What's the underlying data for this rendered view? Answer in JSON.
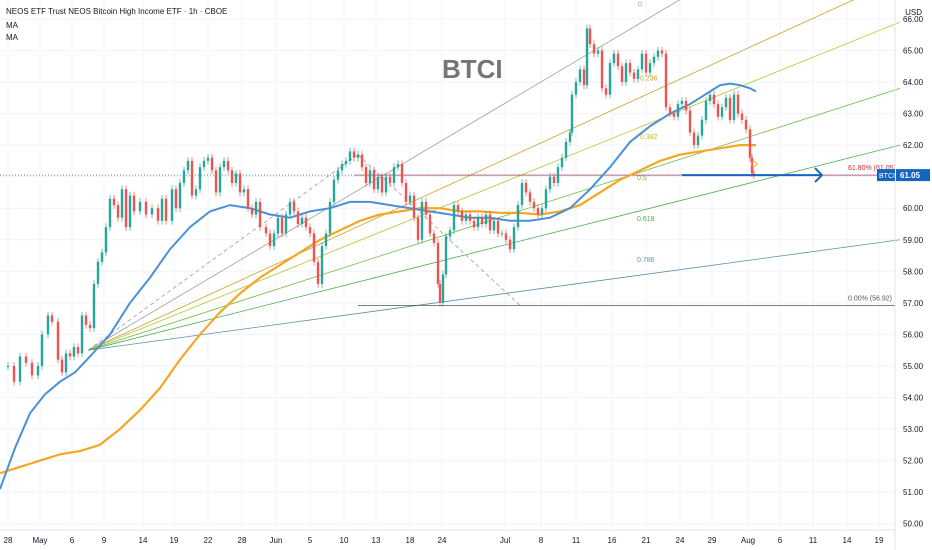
{
  "header": {
    "title": "NEOS ETF Trust NEOS Bitcoin High Income ETF · 1h · CBOE",
    "indicators": [
      "MA",
      "MA"
    ]
  },
  "axis_unit": "USD",
  "colors": {
    "up": "#26a69a",
    "down": "#ef5350",
    "ma_fast": "#4a90d9",
    "ma_slow": "#f5a623",
    "annotation": "#1565c0",
    "fib_level": "#d32f2f"
  },
  "chart_data": {
    "type": "line",
    "ticker_label": "BTCI",
    "last_price": "61.05",
    "ylim": [
      49.8,
      66.6
    ],
    "y_ticks": [
      "50.00",
      "51.00",
      "52.00",
      "53.00",
      "54.00",
      "55.00",
      "56.00",
      "57.00",
      "58.00",
      "59.00",
      "60.00",
      "61.00",
      "62.00",
      "63.00",
      "64.00",
      "65.00",
      "66.00"
    ],
    "x_ticks": [
      "28",
      "May",
      "6",
      "9",
      "14",
      "19",
      "22",
      "28",
      "Jun",
      "5",
      "10",
      "13",
      "18",
      "24",
      "Jul",
      "8",
      "11",
      "16",
      "21",
      "24",
      "29",
      "Aug",
      "6",
      "11",
      "14",
      "19"
    ],
    "price_path": [
      [
        0,
        55.0
      ],
      [
        8,
        55.0
      ],
      [
        14,
        54.5
      ],
      [
        20,
        55.3
      ],
      [
        26,
        55.1
      ],
      [
        32,
        54.7
      ],
      [
        38,
        55.0
      ],
      [
        42,
        56.0
      ],
      [
        48,
        56.6
      ],
      [
        52,
        56.4
      ],
      [
        58,
        55.2
      ],
      [
        62,
        54.8
      ],
      [
        66,
        55.4
      ],
      [
        70,
        55.3
      ],
      [
        74,
        55.6
      ],
      [
        78,
        55.4
      ],
      [
        82,
        56.6
      ],
      [
        86,
        56.3
      ],
      [
        90,
        56.2
      ],
      [
        94,
        57.6
      ],
      [
        98,
        58.3
      ],
      [
        102,
        58.6
      ],
      [
        106,
        59.4
      ],
      [
        110,
        60.3
      ],
      [
        114,
        60.1
      ],
      [
        118,
        59.7
      ],
      [
        122,
        60.6
      ],
      [
        126,
        59.4
      ],
      [
        130,
        60.4
      ],
      [
        134,
        59.9
      ],
      [
        140,
        60.2
      ],
      [
        146,
        59.8
      ],
      [
        152,
        60.0
      ],
      [
        158,
        59.6
      ],
      [
        162,
        60.3
      ],
      [
        166,
        59.6
      ],
      [
        172,
        60.6
      ],
      [
        176,
        60.0
      ],
      [
        180,
        60.8
      ],
      [
        184,
        61.2
      ],
      [
        188,
        61.5
      ],
      [
        192,
        60.4
      ],
      [
        196,
        60.6
      ],
      [
        200,
        61.3
      ],
      [
        204,
        61.5
      ],
      [
        208,
        61.6
      ],
      [
        212,
        61.2
      ],
      [
        216,
        60.5
      ],
      [
        220,
        61.3
      ],
      [
        224,
        61.5
      ],
      [
        228,
        61.2
      ],
      [
        232,
        60.8
      ],
      [
        236,
        61.1
      ],
      [
        240,
        60.5
      ],
      [
        244,
        60.6
      ],
      [
        248,
        60.0
      ],
      [
        252,
        59.8
      ],
      [
        256,
        60.2
      ],
      [
        260,
        59.4
      ],
      [
        266,
        59.2
      ],
      [
        270,
        58.8
      ],
      [
        274,
        59.2
      ],
      [
        278,
        59.7
      ],
      [
        282,
        59.2
      ],
      [
        286,
        59.8
      ],
      [
        290,
        60.2
      ],
      [
        294,
        59.9
      ],
      [
        298,
        59.5
      ],
      [
        302,
        59.7
      ],
      [
        306,
        59.4
      ],
      [
        310,
        59.2
      ],
      [
        314,
        58.3
      ],
      [
        318,
        57.6
      ],
      [
        322,
        58.8
      ],
      [
        326,
        59.2
      ],
      [
        330,
        60.2
      ],
      [
        334,
        60.9
      ],
      [
        338,
        61.2
      ],
      [
        342,
        61.4
      ],
      [
        346,
        61.5
      ],
      [
        350,
        61.8
      ],
      [
        354,
        61.6
      ],
      [
        358,
        61.7
      ],
      [
        362,
        61.3
      ],
      [
        366,
        60.8
      ],
      [
        370,
        61.2
      ],
      [
        374,
        60.6
      ],
      [
        378,
        61.0
      ],
      [
        382,
        60.5
      ],
      [
        386,
        61.0
      ],
      [
        390,
        60.8
      ],
      [
        394,
        61.3
      ],
      [
        398,
        61.4
      ],
      [
        402,
        60.8
      ],
      [
        406,
        60.2
      ],
      [
        410,
        60.4
      ],
      [
        414,
        59.7
      ],
      [
        418,
        59.0
      ],
      [
        422,
        60.2
      ],
      [
        426,
        59.8
      ],
      [
        430,
        59.2
      ],
      [
        434,
        58.9
      ],
      [
        438,
        57.6
      ],
      [
        440,
        57.0
      ],
      [
        443,
        57.9
      ],
      [
        446,
        59.1
      ],
      [
        450,
        59.3
      ],
      [
        454,
        60.1
      ],
      [
        458,
        59.9
      ],
      [
        462,
        59.6
      ],
      [
        466,
        59.8
      ],
      [
        470,
        59.6
      ],
      [
        474,
        59.4
      ],
      [
        478,
        59.7
      ],
      [
        482,
        59.5
      ],
      [
        486,
        59.8
      ],
      [
        490,
        59.3
      ],
      [
        494,
        59.6
      ],
      [
        498,
        59.2
      ],
      [
        502,
        59.2
      ],
      [
        506,
        59.0
      ],
      [
        510,
        58.7
      ],
      [
        514,
        59.4
      ],
      [
        518,
        60.1
      ],
      [
        522,
        60.8
      ],
      [
        526,
        60.5
      ],
      [
        530,
        60.2
      ],
      [
        534,
        60.0
      ],
      [
        538,
        59.8
      ],
      [
        542,
        60.0
      ],
      [
        546,
        60.6
      ],
      [
        550,
        61.0
      ],
      [
        554,
        60.8
      ],
      [
        558,
        61.3
      ],
      [
        562,
        61.6
      ],
      [
        566,
        62.1
      ],
      [
        570,
        62.4
      ],
      [
        572,
        63.6
      ],
      [
        576,
        64.0
      ],
      [
        580,
        64.4
      ],
      [
        584,
        63.9
      ],
      [
        587,
        65.7
      ],
      [
        590,
        65.2
      ],
      [
        594,
        64.9
      ],
      [
        598,
        65.0
      ],
      [
        602,
        63.8
      ],
      [
        606,
        63.6
      ],
      [
        610,
        64.6
      ],
      [
        614,
        64.9
      ],
      [
        618,
        64.5
      ],
      [
        622,
        64.0
      ],
      [
        626,
        64.6
      ],
      [
        630,
        64.3
      ],
      [
        634,
        64.1
      ],
      [
        638,
        64.4
      ],
      [
        642,
        64.9
      ],
      [
        646,
        64.3
      ],
      [
        650,
        64.6
      ],
      [
        654,
        64.8
      ],
      [
        658,
        65.0
      ],
      [
        662,
        64.9
      ],
      [
        666,
        63.2
      ],
      [
        670,
        63.0
      ],
      [
        674,
        62.9
      ],
      [
        678,
        63.3
      ],
      [
        682,
        63.4
      ],
      [
        686,
        63.1
      ],
      [
        690,
        62.4
      ],
      [
        694,
        62.0
      ],
      [
        698,
        62.3
      ],
      [
        702,
        62.8
      ],
      [
        706,
        63.4
      ],
      [
        710,
        63.6
      ],
      [
        714,
        63.3
      ],
      [
        718,
        62.9
      ],
      [
        722,
        63.2
      ],
      [
        726,
        63.5
      ],
      [
        730,
        62.8
      ],
      [
        734,
        63.6
      ],
      [
        738,
        63.0
      ],
      [
        742,
        62.8
      ],
      [
        746,
        62.5
      ],
      [
        750,
        61.6
      ],
      [
        752,
        61.1
      ],
      [
        754,
        61.05
      ]
    ],
    "ma_fast": [
      [
        0,
        51.1
      ],
      [
        15,
        52.4
      ],
      [
        30,
        53.5
      ],
      [
        45,
        54.1
      ],
      [
        60,
        54.5
      ],
      [
        75,
        54.8
      ],
      [
        90,
        55.3
      ],
      [
        110,
        56.0
      ],
      [
        130,
        57.0
      ],
      [
        150,
        57.8
      ],
      [
        170,
        58.7
      ],
      [
        190,
        59.4
      ],
      [
        210,
        59.9
      ],
      [
        230,
        60.1
      ],
      [
        250,
        60.0
      ],
      [
        270,
        59.8
      ],
      [
        290,
        59.7
      ],
      [
        310,
        59.9
      ],
      [
        330,
        60.0
      ],
      [
        350,
        60.2
      ],
      [
        370,
        60.2
      ],
      [
        390,
        60.1
      ],
      [
        410,
        60.0
      ],
      [
        430,
        59.9
      ],
      [
        450,
        59.8
      ],
      [
        470,
        59.7
      ],
      [
        490,
        59.7
      ],
      [
        510,
        59.6
      ],
      [
        530,
        59.6
      ],
      [
        550,
        59.7
      ],
      [
        570,
        60.0
      ],
      [
        590,
        60.6
      ],
      [
        610,
        61.3
      ],
      [
        630,
        62.1
      ],
      [
        650,
        62.6
      ],
      [
        670,
        63.0
      ],
      [
        690,
        63.3
      ],
      [
        700,
        63.5
      ],
      [
        710,
        63.7
      ],
      [
        720,
        63.9
      ],
      [
        730,
        63.95
      ],
      [
        740,
        63.9
      ],
      [
        750,
        63.8
      ],
      [
        756,
        63.7
      ]
    ],
    "ma_slow": [
      [
        0,
        51.6
      ],
      [
        20,
        51.8
      ],
      [
        40,
        52.0
      ],
      [
        60,
        52.2
      ],
      [
        80,
        52.3
      ],
      [
        100,
        52.5
      ],
      [
        120,
        53.0
      ],
      [
        140,
        53.6
      ],
      [
        160,
        54.3
      ],
      [
        180,
        55.2
      ],
      [
        200,
        56.0
      ],
      [
        220,
        56.7
      ],
      [
        240,
        57.3
      ],
      [
        260,
        57.8
      ],
      [
        280,
        58.2
      ],
      [
        300,
        58.6
      ],
      [
        320,
        59.0
      ],
      [
        340,
        59.3
      ],
      [
        360,
        59.6
      ],
      [
        380,
        59.8
      ],
      [
        400,
        59.9
      ],
      [
        420,
        60.0
      ],
      [
        440,
        60.0
      ],
      [
        460,
        59.9
      ],
      [
        480,
        59.9
      ],
      [
        500,
        59.85
      ],
      [
        520,
        59.85
      ],
      [
        540,
        59.8
      ],
      [
        560,
        59.9
      ],
      [
        580,
        60.1
      ],
      [
        600,
        60.5
      ],
      [
        620,
        60.9
      ],
      [
        640,
        61.2
      ],
      [
        660,
        61.5
      ],
      [
        680,
        61.7
      ],
      [
        700,
        61.8
      ],
      [
        720,
        61.9
      ],
      [
        740,
        62.0
      ],
      [
        756,
        62.0
      ]
    ],
    "fan_origin": [
      88,
      55.5
    ],
    "fan_levels": [
      {
        "label": "0",
        "end": [
          690,
          66.8
        ],
        "color": "#9e9e9e"
      },
      {
        "label": "0.236",
        "end": [
          860,
          66.7
        ],
        "color": "#c9a227"
      },
      {
        "label": "0.382",
        "end": [
          900,
          65.9
        ],
        "color": "#b8c42a"
      },
      {
        "label": "0.5",
        "end": [
          900,
          63.8
        ],
        "color": "#6cbf3c"
      },
      {
        "label": "0.618",
        "end": [
          900,
          62.0
        ],
        "color": "#4caf50"
      },
      {
        "label": "0.786",
        "end": [
          900,
          59.0
        ],
        "color": "#5c8fa8"
      }
    ],
    "fan_label_positions": [
      [
        638,
        66.4
      ],
      [
        640,
        64.05
      ],
      [
        640,
        62.2
      ],
      [
        637,
        60.9
      ],
      [
        637,
        59.6
      ],
      [
        637,
        58.3
      ]
    ],
    "fib_retracement": [
      {
        "label": "61.80% (61.05)",
        "value": 61.05,
        "color": "#d32f2f"
      },
      {
        "label": "0.00% (56.92)",
        "value": 56.92,
        "color": "#555555"
      }
    ],
    "last_price_line": 61.05,
    "arrow": {
      "from": [
        682,
        61.05
      ],
      "to": [
        822,
        61.05
      ]
    },
    "overlay_text": "BTCI",
    "marker_point": [
      754,
      61.4
    ]
  }
}
